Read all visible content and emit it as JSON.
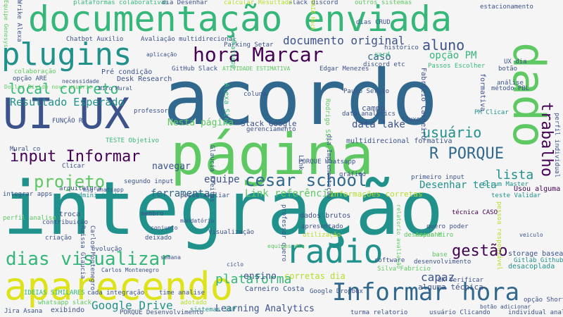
{
  "palette": {
    "purple": "#440154",
    "indigo": "#3b528b",
    "teal": "#21918c",
    "green": "#5ec962",
    "lime": "#b5de2b",
    "yellow": "#dde318",
    "blue": "#31688e",
    "seagreen": "#35b779",
    "background": "#f5f5f5"
  },
  "words": [
    {
      "text": "integração",
      "color": "teal"
    },
    {
      "text": "acordo",
      "color": "blue"
    },
    {
      "text": "página",
      "color": "green"
    },
    {
      "text": "documentação enviada",
      "color": "seagreen"
    },
    {
      "text": "plugins",
      "color": "teal"
    },
    {
      "text": "UI UX",
      "color": "indigo"
    },
    {
      "text": "dado",
      "color": "green"
    },
    {
      "text": "aparecendo",
      "color": "yellow"
    },
    {
      "text": "radio",
      "color": "teal"
    },
    {
      "text": "Informar hora",
      "color": "blue"
    },
    {
      "text": "hora Marcar",
      "color": "purple"
    },
    {
      "text": "local correto",
      "color": "seagreen"
    },
    {
      "text": "input Informar",
      "color": "purple"
    },
    {
      "text": "dias visualizar",
      "color": "seagreen"
    },
    {
      "text": "projeto",
      "color": "green"
    },
    {
      "text": "cesar school",
      "color": "blue"
    },
    {
      "text": "R PORQUE",
      "color": "blue"
    },
    {
      "text": "trabalho",
      "color": "purple"
    },
    {
      "text": "usuário",
      "color": "teal"
    },
    {
      "text": "gestão",
      "color": "purple"
    },
    {
      "text": "plataforma",
      "color": "seagreen"
    },
    {
      "text": "lista",
      "color": "teal"
    },
    {
      "text": "aluno",
      "color": "indigo"
    },
    {
      "text": "Resultado Esperado",
      "color": "teal"
    },
    {
      "text": "documento original",
      "color": "indigo"
    },
    {
      "text": "Google Drive",
      "color": "teal"
    },
    {
      "text": "ferramenta",
      "color": "blue"
    },
    {
      "text": "equipe",
      "color": "indigo"
    },
    {
      "text": "Link referência",
      "color": "green"
    },
    {
      "text": "capaz",
      "color": "indigo"
    },
    {
      "text": "Desenhar tela",
      "color": "teal"
    },
    {
      "text": "data lake",
      "color": "indigo"
    },
    {
      "text": "Nesta página",
      "color": "green"
    },
    {
      "text": "navegar",
      "color": "indigo"
    },
    {
      "text": "caso",
      "color": "blue"
    },
    {
      "text": "opção PM",
      "color": "seagreen"
    },
    {
      "text": "ensino",
      "color": "indigo"
    },
    {
      "text": "Learning Analytics",
      "color": "indigo"
    },
    {
      "text": "Usou alguma",
      "color": "purple"
    },
    {
      "text": "Stack Google",
      "color": "indigo"
    },
    {
      "text": "multidirecional formativa",
      "color": "indigo"
    },
    {
      "text": "corretas dia",
      "color": "lime"
    },
    {
      "text": "dados brutos",
      "color": "indigo"
    },
    {
      "text": "técnica CASO",
      "color": "purple"
    },
    {
      "text": "informações corretas",
      "color": "lime"
    },
    {
      "text": "campo",
      "color": "indigo"
    },
    {
      "text": "alguma técnica",
      "color": "indigo"
    },
    {
      "text": "storage baseado",
      "color": "indigo"
    },
    {
      "text": "desacoplada",
      "color": "teal"
    },
    {
      "text": "Gitlab Github",
      "color": "teal"
    },
    {
      "text": "UX Verificar",
      "color": "indigo"
    },
    {
      "text": "Carneiro Costa",
      "color": "indigo"
    },
    {
      "text": "Jira Asana",
      "color": "indigo"
    },
    {
      "text": "whatsapp slack",
      "color": "green"
    },
    {
      "text": "exibindo",
      "color": "indigo"
    },
    {
      "text": "sistemas SAP",
      "color": "teal"
    },
    {
      "text": "cada integração",
      "color": "indigo"
    },
    {
      "text": "time analise",
      "color": "indigo"
    },
    {
      "text": "IDEIAS SIMILARES",
      "color": "seagreen"
    },
    {
      "text": "Chatbot Auxilio",
      "color": "indigo"
    },
    {
      "text": "Avaliação multidirecional",
      "color": "indigo"
    },
    {
      "text": "plataformas colaborativas",
      "color": "seagreen"
    },
    {
      "text": "dia Desenhar",
      "color": "indigo"
    },
    {
      "text": "slack discord",
      "color": "indigo"
    },
    {
      "text": "outros sistemas",
      "color": "green"
    },
    {
      "text": "Parking Setar",
      "color": "indigo"
    },
    {
      "text": "Pré condição",
      "color": "indigo"
    },
    {
      "text": "Desk Research",
      "color": "indigo"
    },
    {
      "text": "colaboração",
      "color": "green"
    },
    {
      "text": "TESTE Objetivo",
      "color": "seagreen"
    },
    {
      "text": "FUNÇÃO R",
      "color": "indigo"
    },
    {
      "text": "Mural co",
      "color": "indigo"
    },
    {
      "text": "arquitetura",
      "color": "indigo"
    },
    {
      "text": "integrar apps",
      "color": "indigo"
    },
    {
      "text": "troca",
      "color": "indigo"
    },
    {
      "text": "segundo input",
      "color": "indigo"
    },
    {
      "text": "administrador",
      "color": "teal"
    },
    {
      "text": "Visualização",
      "color": "indigo"
    },
    {
      "text": "apresentado",
      "color": "indigo"
    },
    {
      "text": "utilização",
      "color": "lime"
    },
    {
      "text": "desempenho",
      "color": "green"
    },
    {
      "text": "software",
      "color": "indigo"
    },
    {
      "text": "desenvolvimento",
      "color": "indigo"
    },
    {
      "text": "deixado",
      "color": "indigo"
    },
    {
      "text": "criação",
      "color": "indigo"
    },
    {
      "text": "membro",
      "color": "indigo"
    },
    {
      "text": "professor",
      "color": "indigo"
    },
    {
      "text": "Asana Miro",
      "color": "green"
    },
    {
      "text": "quero poder",
      "color": "indigo"
    },
    {
      "text": "Scrum Master",
      "color": "teal"
    },
    {
      "text": "Clicar",
      "color": "indigo"
    },
    {
      "text": "Whatsapp",
      "color": "seagreen"
    },
    {
      "text": "gráfico",
      "color": "indigo"
    },
    {
      "text": "fluxo",
      "color": "indigo"
    },
    {
      "text": "PM Clicar",
      "color": "teal"
    },
    {
      "text": "análise",
      "color": "indigo"
    },
    {
      "text": "método PBL",
      "color": "indigo"
    },
    {
      "text": "UX dia",
      "color": "indigo"
    },
    {
      "text": "botão",
      "color": "indigo"
    },
    {
      "text": "dias CRUD",
      "color": "indigo"
    },
    {
      "text": "card",
      "color": "seagreen"
    },
    {
      "text": "histórico",
      "color": "indigo"
    },
    {
      "text": "discord etc",
      "color": "indigo"
    },
    {
      "text": "Passos Escolher",
      "color": "seagreen"
    },
    {
      "text": "Edgar Menezes",
      "color": "indigo"
    },
    {
      "text": "coluna",
      "color": "indigo"
    },
    {
      "text": "gerenciamento",
      "color": "indigo"
    },
    {
      "text": "Paulo Sergio",
      "color": "indigo"
    },
    {
      "text": "data analytics",
      "color": "indigo"
    },
    {
      "text": "Alexa Siri",
      "color": "seagreen"
    },
    {
      "text": "Fabrício Carneiro",
      "color": "indigo"
    },
    {
      "text": "formativa",
      "color": "indigo"
    },
    {
      "text": "teste Validar",
      "color": "teal"
    },
    {
      "text": "primeiro input",
      "color": "indigo"
    },
    {
      "text": "perfil individual",
      "color": "indigo"
    },
    {
      "text": "Silva Fabrício",
      "color": "green"
    },
    {
      "text": "Google Dropbox",
      "color": "indigo"
    },
    {
      "text": "turma relatorio",
      "color": "indigo"
    },
    {
      "text": "usuário Clicando",
      "color": "indigo"
    },
    {
      "text": "individual analise",
      "color": "indigo"
    },
    {
      "text": "PORQUE Desenvolvimento",
      "color": "indigo"
    },
    {
      "text": "opção Short",
      "color": "indigo"
    },
    {
      "text": "base",
      "color": "green"
    },
    {
      "text": "estacionamento",
      "color": "indigo"
    },
    {
      "text": "dia Implementação",
      "color": "indigo"
    },
    {
      "text": "calcular Resultado",
      "color": "lime"
    },
    {
      "text": "Wrike Alexa",
      "color": "indigo"
    },
    {
      "text": "Equipe Genesys",
      "color": "green"
    },
    {
      "text": "Dollar Divide novo usuário",
      "color": "green"
    },
    {
      "text": "GitHub Slack",
      "color": "indigo"
    },
    {
      "text": "ATIVIDADE ESTIMATIVA",
      "color": "green"
    },
    {
      "text": "professor quero",
      "color": "indigo"
    },
    {
      "text": "Link",
      "color": "indigo"
    },
    {
      "text": "Raissa Glaucia",
      "color": "indigo"
    },
    {
      "text": "Carlos Montenegro",
      "color": "indigo"
    },
    {
      "text": "PORQUE Whatsapp",
      "color": "indigo"
    },
    {
      "text": "equipes dia",
      "color": "green"
    },
    {
      "text": "Carlos Montenegro",
      "color": "indigo"
    },
    {
      "text": "conjunto",
      "color": "indigo"
    },
    {
      "text": "aplicação",
      "color": "indigo"
    },
    {
      "text": "opção ARE",
      "color": "indigo"
    },
    {
      "text": "necessidade",
      "color": "indigo"
    },
    {
      "text": "Miro Mural",
      "color": "indigo"
    },
    {
      "text": "msg whatsapp",
      "color": "indigo"
    },
    {
      "text": "possa avaliar",
      "color": "indigo"
    },
    {
      "text": "evolução",
      "color": "indigo"
    },
    {
      "text": "contribuição",
      "color": "indigo"
    },
    {
      "text": "perfil analise",
      "color": "green"
    },
    {
      "text": "adotado",
      "color": "lime"
    },
    {
      "text": "ciclo",
      "color": "indigo"
    },
    {
      "text": "veiculo",
      "color": "indigo"
    },
    {
      "text": "pessoa responsável",
      "color": "lime"
    },
    {
      "text": "relatorio avaliação",
      "color": "green"
    },
    {
      "text": "mandatório",
      "color": "indigo"
    },
    {
      "text": "semana",
      "color": "indigo"
    },
    {
      "text": "botão adicionar",
      "color": "indigo"
    },
    {
      "text": "GAIA Hack",
      "color": "lime"
    },
    {
      "text": "Glaucia Freitas",
      "color": "indigo"
    },
    {
      "text": "Rodrigo Silva",
      "color": "green"
    }
  ]
}
